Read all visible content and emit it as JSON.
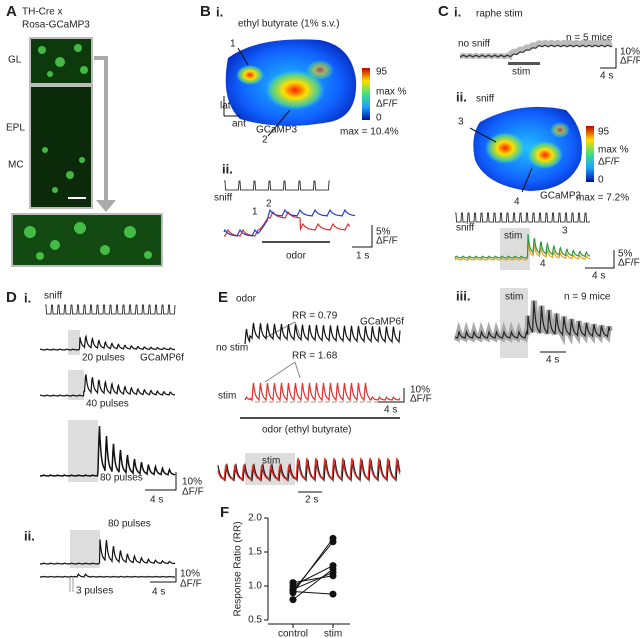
{
  "panel_a": {
    "label": "A",
    "title": [
      "TH-Cre x",
      "Rosa-GCaMP3"
    ],
    "layers": [
      "GL",
      "EPL",
      "MC"
    ]
  },
  "panel_b": {
    "label": "B",
    "i": {
      "label": "i.",
      "title": "ethyl butyrate (1% s.v.)",
      "roi": [
        "1",
        "2"
      ],
      "colorbar": {
        "max": 95,
        "unit": [
          "max %",
          "ΔF/F"
        ],
        "min": 0
      },
      "axes": [
        "lat",
        "ant"
      ],
      "indicator": "GCaMP3",
      "max": "max = 10.4%"
    },
    "ii": {
      "label": "ii.",
      "sniff": "sniff",
      "roi": [
        "1",
        "2"
      ],
      "odor": "odor",
      "scale_y": [
        "5%",
        "ΔF/F"
      ],
      "scale_x": "1 s"
    }
  },
  "panel_c": {
    "label": "C",
    "i": {
      "label": "i.",
      "title": "raphe stim",
      "n": "n = 5 mice",
      "condition": "no sniff",
      "stim": "stim",
      "scale_y": [
        "10%",
        "ΔF/F"
      ],
      "scale_x": "4 s"
    },
    "ii": {
      "label": "ii.",
      "title": "sniff",
      "roi": [
        "3",
        "4"
      ],
      "colorbar": {
        "max": 95,
        "unit": [
          "max %",
          "ΔF/F"
        ],
        "min": 0
      },
      "indicator": "GCaMP3",
      "max": "max = 7.2%",
      "sniff": "sniff",
      "stim": "stim",
      "trace_roi": [
        "3",
        "4"
      ],
      "scale_y": [
        "5%",
        "ΔF/F"
      ],
      "scale_x": "4 s"
    },
    "iii": {
      "label": "iii.",
      "stim": "stim",
      "n": "n = 9 mice",
      "scale_x": "4 s"
    }
  },
  "panel_d": {
    "label": "D",
    "i": {
      "label": "i.",
      "sniff": "sniff",
      "pulses": [
        "20 pulses",
        "40 pulses",
        "80 pulses"
      ],
      "indicator": "GCaMP6f",
      "scale_y": [
        "10%",
        "ΔF/F"
      ],
      "scale_x": "4 s"
    },
    "ii": {
      "label": "ii.",
      "pulses": [
        "80 pulses",
        "3 pulses"
      ],
      "scale_y": [
        "10%",
        "ΔF/F"
      ],
      "scale_x": "4 s"
    }
  },
  "panel_e": {
    "label": "E",
    "title": "odor",
    "rr": [
      "RR = 0.79",
      "RR = 1.68"
    ],
    "indicator": "GCaMP6f",
    "conditions": [
      "no stim",
      "stim"
    ],
    "scale_y": [
      "10%",
      "ΔF/F"
    ],
    "scale_x": "4 s",
    "odor": "odor (ethyl butyrate)",
    "overlay_stim": "stim",
    "overlay_scale_x": "2 s"
  },
  "chart_data": {
    "type": "paired",
    "label": "F",
    "ylabel": "Response Ratio (RR)",
    "categories": [
      "control",
      "stim"
    ],
    "values": [
      [
        0.8,
        0.9,
        0.93,
        0.95,
        1.0,
        1.05,
        0.92
      ],
      [
        1.25,
        1.7,
        1.65,
        1.2,
        1.3,
        1.15,
        0.88
      ]
    ],
    "ylim": [
      0.5,
      2.0
    ],
    "yticks": [
      0.5,
      {
        "value": 1.0,
        "label": "1.0"
      },
      1.5,
      {
        "value": 2.0,
        "label": "2.0"
      }
    ],
    "color": "#111"
  }
}
